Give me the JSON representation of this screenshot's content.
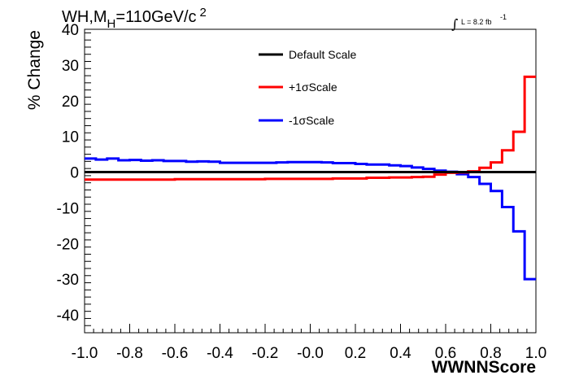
{
  "chart_data": {
    "type": "step",
    "title": {
      "prefix": "WH,M",
      "subscript": "H",
      "main": "=110GeV/c",
      "superscript": "2"
    },
    "luminosity": {
      "integral_symbol": "∫",
      "text": "L = 8.2 fb",
      "superscript": "-1"
    },
    "xlabel": "WWNNScore",
    "ylabel": "% Change",
    "xlim": [
      -1.0,
      1.0
    ],
    "ylim": [
      -45,
      40
    ],
    "x_ticks": [
      "-1.0",
      "-0.8",
      "-0.6",
      "-0.4",
      "-0.2",
      "-0.0",
      "0.2",
      "0.4",
      "0.6",
      "0.8",
      "1.0"
    ],
    "y_ticks": [
      "40",
      "30",
      "20",
      "10",
      "0",
      "-10",
      "-20",
      "-30",
      "-40"
    ],
    "y_tick_values": [
      40,
      30,
      20,
      10,
      0,
      -10,
      -20,
      -30,
      -40
    ],
    "bin_edges": [
      -1.0,
      -0.95,
      -0.9,
      -0.85,
      -0.8,
      -0.75,
      -0.7,
      -0.65,
      -0.6,
      -0.55,
      -0.5,
      -0.45,
      -0.4,
      -0.35,
      -0.3,
      -0.25,
      -0.2,
      -0.15,
      -0.1,
      -0.05,
      0.0,
      0.05,
      0.1,
      0.15,
      0.2,
      0.25,
      0.3,
      0.35,
      0.4,
      0.45,
      0.5,
      0.55,
      0.6,
      0.65,
      0.7,
      0.75,
      0.8,
      0.85,
      0.9,
      0.95,
      1.0
    ],
    "series": [
      {
        "name": "Default Scale",
        "color": "#000000",
        "values": [
          0,
          0,
          0,
          0,
          0,
          0,
          0,
          0,
          0,
          0,
          0,
          0,
          0,
          0,
          0,
          0,
          0,
          0,
          0,
          0,
          0,
          0,
          0,
          0,
          0,
          0,
          0,
          0,
          0,
          0,
          0,
          0,
          0,
          0,
          0,
          0,
          0,
          0,
          0,
          0
        ]
      },
      {
        "name": "+1σScale",
        "color": "#ff0000",
        "values": [
          -2.1,
          -2.1,
          -2.1,
          -2.1,
          -2.1,
          -2.1,
          -2.1,
          -2.1,
          -2.0,
          -2.0,
          -2.0,
          -2.0,
          -2.0,
          -2.0,
          -2.0,
          -2.0,
          -1.9,
          -1.9,
          -1.9,
          -1.9,
          -1.9,
          -1.9,
          -1.8,
          -1.8,
          -1.8,
          -1.6,
          -1.6,
          -1.5,
          -1.5,
          -1.4,
          -1.3,
          -0.7,
          -0.2,
          -0.1,
          0.2,
          1.2,
          2.7,
          6.1,
          11.3,
          26.7
        ]
      },
      {
        "name": "-1σScale",
        "color": "#0000ff",
        "values": [
          3.8,
          3.5,
          3.8,
          3.3,
          3.4,
          3.2,
          3.3,
          3.1,
          3.1,
          2.9,
          3.0,
          2.9,
          2.6,
          2.6,
          2.6,
          2.6,
          2.6,
          2.7,
          2.8,
          2.8,
          2.8,
          2.7,
          2.5,
          2.5,
          2.3,
          2.1,
          2.1,
          1.9,
          1.7,
          1.3,
          0.9,
          0.4,
          0.1,
          -0.6,
          -1.4,
          -3.3,
          -5.3,
          -9.8,
          -16.6,
          -30.0
        ]
      }
    ],
    "legend": {
      "placement": "top-center"
    }
  }
}
